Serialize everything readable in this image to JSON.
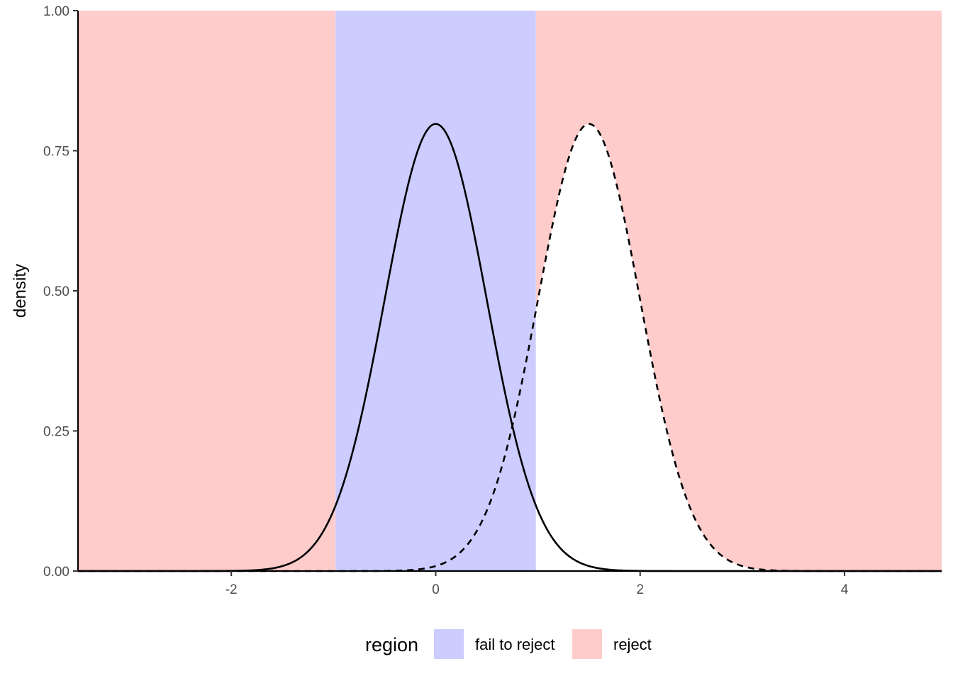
{
  "chart_data": {
    "type": "area",
    "title": "",
    "xlabel": "",
    "ylabel": "density",
    "xlim": [
      -3.5,
      4.95
    ],
    "ylim": [
      0,
      1
    ],
    "x_ticks": [
      -2,
      0,
      2,
      4
    ],
    "x_tick_labels": [
      "-2",
      "0",
      "2",
      "4"
    ],
    "y_ticks": [
      0,
      0.25,
      0.5,
      0.75,
      1
    ],
    "y_tick_labels": [
      "0.00",
      "0.25",
      "0.50",
      "0.75",
      "1.00"
    ],
    "grid": false,
    "regions": [
      {
        "label": "reject",
        "xmin": -3.5,
        "xmax": -0.98,
        "color": "#FFCCCC"
      },
      {
        "label": "fail to reject",
        "xmin": -0.98,
        "xmax": 0.98,
        "color": "#CCCCFF"
      },
      {
        "label": "reject",
        "xmin": 0.98,
        "xmax": 4.95,
        "color": "#FFCCCC"
      }
    ],
    "series": [
      {
        "distribution": "normal",
        "mean": 0,
        "sd": 0.5,
        "line_style": "solid",
        "color": "#000000"
      },
      {
        "distribution": "normal",
        "mean": 1.5,
        "sd": 0.5,
        "line_style": "dashed",
        "color": "#000000",
        "fill_under": "#FFFFFF",
        "fill_from_x": 0.98
      }
    ],
    "legend": {
      "title": "region",
      "position": "bottom",
      "entries": [
        {
          "label": "fail to reject",
          "color": "#CCCCFF"
        },
        {
          "label": "reject",
          "color": "#FFCCCC"
        }
      ]
    }
  }
}
